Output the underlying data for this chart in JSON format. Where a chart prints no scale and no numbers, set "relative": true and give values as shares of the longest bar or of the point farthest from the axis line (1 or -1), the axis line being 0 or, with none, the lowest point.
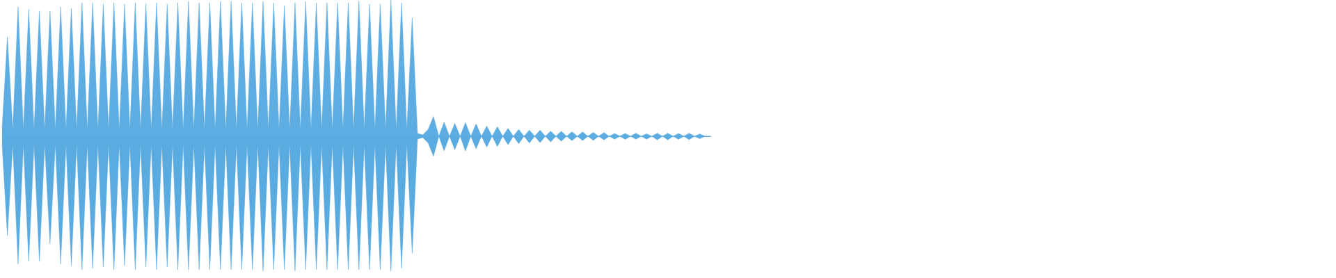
{
  "chart_data": {
    "type": "area",
    "relative": true,
    "categories": [
      null,
      null,
      null,
      null,
      null,
      null,
      null,
      null,
      null,
      null,
      null,
      null,
      null,
      null,
      null,
      null,
      null,
      null,
      null,
      null,
      null,
      null,
      null,
      null,
      null,
      null,
      null,
      null,
      null,
      null,
      null,
      null,
      null,
      null,
      null,
      null,
      null,
      null,
      null,
      null,
      null,
      null,
      null,
      null,
      null,
      null,
      null,
      null,
      null,
      null,
      null,
      null,
      null,
      null,
      null,
      null,
      null,
      null,
      null,
      null,
      null,
      null,
      null,
      null,
      null,
      null,
      null,
      null,
      null,
      null,
      null,
      null,
      null,
      null,
      null,
      null,
      null,
      null,
      null,
      null,
      null,
      null,
      null,
      null,
      null,
      null,
      null,
      null,
      null,
      null,
      null,
      null,
      null,
      null,
      null,
      null,
      null,
      null,
      null,
      null,
      null,
      null,
      null,
      null,
      null,
      null,
      null,
      null,
      null,
      null,
      null,
      null,
      null,
      null,
      null,
      null,
      null,
      null,
      null,
      null,
      null,
      null,
      null,
      null,
      null,
      null,
      null,
      null,
      null,
      null,
      null,
      null,
      null,
      null
    ],
    "ref_lines": [
      {
        "axis": "y",
        "value": 0,
        "color": "#5dade2"
      }
    ],
    "series": [
      {
        "color": "#5dade2",
        "values": [
          0.06,
          0.73,
          0.05,
          0.95,
          0.05,
          0.93,
          0.05,
          0.92,
          0.05,
          0.92,
          0.05,
          0.95,
          0.05,
          0.94,
          0.05,
          0.98,
          0.05,
          0.98,
          0.05,
          0.97,
          0.05,
          0.98,
          0.05,
          0.97,
          0.05,
          0.98,
          0.05,
          0.97,
          0.05,
          0.98,
          0.05,
          0.97,
          0.05,
          0.98,
          0.05,
          0.99,
          0.05,
          0.98,
          0.05,
          0.98,
          0.05,
          0.99,
          0.05,
          0.99,
          0.05,
          0.98,
          0.05,
          0.98,
          0.05,
          0.99,
          0.05,
          0.98,
          0.05,
          0.96,
          0.05,
          0.98,
          0.05,
          0.99,
          0.05,
          0.98,
          0.05,
          0.98,
          0.05,
          0.98,
          0.05,
          0.98,
          0.05,
          0.99,
          0.05,
          0.97,
          0.05,
          0.97,
          0.05,
          1,
          0.05,
          0.98,
          0.05,
          0.87,
          0.02,
          0.01,
          0.05,
          0.145,
          0,
          0.103,
          0,
          0.095,
          0,
          0.1,
          0,
          0.09,
          0,
          0.075,
          0,
          0.07,
          0,
          0.058,
          0,
          0.05,
          0,
          0.045,
          0,
          0.045,
          0,
          0.037,
          0,
          0.037,
          0,
          0.033,
          0,
          0.032,
          0,
          0.028,
          0,
          0.027,
          0,
          0.02,
          0,
          0.02,
          0,
          0.022,
          0,
          0.018,
          0,
          0.022,
          0,
          0.022,
          0,
          0.02,
          0,
          0.022,
          0,
          0.017,
          0,
          0
        ]
      },
      {
        "color": "#5aabe0",
        "values": [
          -0.06,
          -0.73,
          -0.06,
          -0.94,
          -0.06,
          -0.92,
          -0.06,
          -0.92,
          -0.06,
          -0.79,
          -0.06,
          -0.94,
          -0.06,
          -0.95,
          -0.06,
          -0.98,
          -0.06,
          -0.97,
          -0.06,
          -0.96,
          -0.06,
          -0.98,
          -0.06,
          -0.95,
          -0.06,
          -0.98,
          -0.06,
          -0.96,
          -0.06,
          -0.98,
          -0.06,
          -0.96,
          -0.06,
          -0.98,
          -0.06,
          -0.98,
          -0.06,
          -0.98,
          -0.06,
          -0.98,
          -0.06,
          -0.98,
          -0.06,
          -0.98,
          -0.06,
          -0.98,
          -0.06,
          -0.98,
          -0.06,
          -0.99,
          -0.06,
          -0.98,
          -0.06,
          -0.98,
          -0.06,
          -0.99,
          -0.06,
          -0.98,
          -0.06,
          -0.98,
          -0.06,
          -0.98,
          -0.06,
          -0.98,
          -0.06,
          -0.98,
          -0.06,
          -0.98,
          -0.06,
          -0.98,
          -0.06,
          -0.98,
          -0.06,
          -0.99,
          -0.06,
          -0.97,
          -0.06,
          -0.86,
          -0.02,
          -0.01,
          -0.05,
          -0.147,
          0,
          -0.108,
          0,
          -0.1,
          0,
          -0.108,
          0,
          -0.092,
          0,
          -0.08,
          0,
          -0.075,
          0,
          -0.063,
          0,
          -0.055,
          0,
          -0.05,
          0,
          -0.047,
          0,
          -0.042,
          0,
          -0.037,
          0,
          -0.033,
          0,
          -0.032,
          0,
          -0.03,
          0,
          -0.027,
          0,
          -0.022,
          0,
          -0.023,
          0,
          -0.022,
          0,
          -0.022,
          0,
          -0.027,
          0,
          -0.027,
          0,
          -0.023,
          0,
          -0.025,
          0,
          -0.018,
          0,
          0
        ]
      }
    ]
  }
}
